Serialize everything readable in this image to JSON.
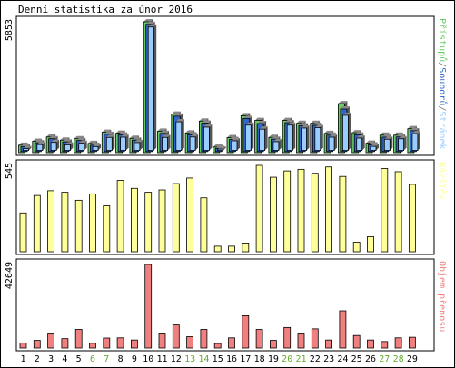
{
  "title": "Denní statistika za únor 2016",
  "colors": {
    "pristupu": "#66cc66",
    "souboru": "#3366cc",
    "stranek": "#99ccff",
    "navstev": "#ffff99",
    "objem": "#f08080",
    "weekend": "#66aa33",
    "axis_text": "#000000"
  },
  "chart_data": [
    {
      "type": "bar",
      "name": "hits",
      "categories": [
        "1",
        "2",
        "3",
        "4",
        "5",
        "6",
        "7",
        "8",
        "9",
        "10",
        "11",
        "12",
        "13",
        "14",
        "15",
        "16",
        "17",
        "18",
        "19",
        "20",
        "21",
        "22",
        "23",
        "24",
        "25",
        "26",
        "27",
        "28",
        "29"
      ],
      "weekend_days": [
        "6",
        "7",
        "13",
        "14",
        "20",
        "21",
        "27",
        "28"
      ],
      "ymax_label": "5853",
      "ylim": [
        0,
        5853
      ],
      "legend_parts": [
        "Přístupů",
        "/",
        "Souborů",
        "/",
        "Stránek"
      ],
      "series": [
        {
          "name": "Přístupů",
          "values": [
            330,
            510,
            700,
            560,
            620,
            410,
            910,
            870,
            640,
            5853,
            960,
            1720,
            880,
            1410,
            250,
            670,
            1650,
            1440,
            680,
            1440,
            1310,
            1310,
            860,
            2190,
            890,
            420,
            780,
            780,
            1070
          ]
        },
        {
          "name": "Souborů",
          "values": [
            260,
            440,
            620,
            480,
            540,
            330,
            820,
            790,
            560,
            5740,
            860,
            1630,
            800,
            1320,
            190,
            590,
            1530,
            1300,
            600,
            1340,
            1200,
            1220,
            780,
            1950,
            790,
            350,
            690,
            700,
            980
          ]
        },
        {
          "name": "Stránek",
          "values": [
            180,
            360,
            460,
            350,
            420,
            270,
            680,
            690,
            450,
            5620,
            680,
            1380,
            700,
            1140,
            160,
            530,
            1230,
            1050,
            490,
            1230,
            1100,
            1120,
            690,
            1670,
            650,
            280,
            600,
            620,
            850
          ]
        }
      ]
    },
    {
      "type": "bar",
      "name": "visits",
      "ymax_label": "545",
      "ylim": [
        0,
        545
      ],
      "legend_parts": [
        "Návštěv"
      ],
      "series": [
        {
          "name": "Návštěv",
          "values": [
            245,
            355,
            385,
            375,
            325,
            365,
            290,
            450,
            400,
            375,
            390,
            430,
            465,
            340,
            35,
            35,
            55,
            545,
            470,
            510,
            520,
            495,
            535,
            475,
            60,
            95,
            525,
            505,
            425
          ]
        }
      ]
    },
    {
      "type": "bar",
      "name": "volume",
      "ymax_label": "42649",
      "ylim": [
        0,
        42649
      ],
      "legend_parts": [
        "Objem přenosu"
      ],
      "series": [
        {
          "name": "Objem přenosu",
          "values": [
            2600,
            3900,
            7200,
            4800,
            9500,
            2400,
            5100,
            5200,
            4100,
            42649,
            7200,
            11800,
            5800,
            9500,
            2300,
            5200,
            16500,
            9500,
            3900,
            10500,
            7200,
            9800,
            4100,
            19000,
            6400,
            4100,
            3300,
            5200,
            5500
          ]
        }
      ]
    }
  ]
}
